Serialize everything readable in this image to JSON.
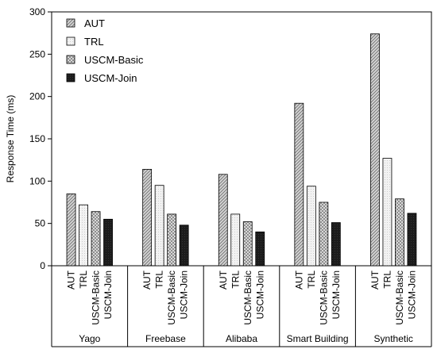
{
  "chart_data": {
    "type": "bar",
    "ylabel": "Response Time (ms)",
    "ylim": [
      0,
      300
    ],
    "yticks": [
      0,
      50,
      100,
      150,
      200,
      250,
      300
    ],
    "grid": false,
    "legend_position": "top-left",
    "categories": [
      "Yago",
      "Freebase",
      "Alibaba",
      "Smart Building",
      "Synthetic"
    ],
    "series": [
      {
        "name": "AUT",
        "pattern": "diagonal-hatch",
        "color": "#cfcfcf",
        "values": [
          85,
          114,
          108,
          192,
          274
        ]
      },
      {
        "name": "TRL",
        "pattern": "light",
        "color": "#f0f0f0",
        "values": [
          72,
          95,
          61,
          94,
          127
        ]
      },
      {
        "name": "USCM-Basic",
        "pattern": "cross-hatch",
        "color": "#d8d8d8",
        "values": [
          64,
          61,
          52,
          75,
          79
        ]
      },
      {
        "name": "USCM-Join",
        "pattern": "dark",
        "color": "#1a1a1a",
        "values": [
          55,
          48,
          40,
          51,
          62
        ]
      }
    ]
  }
}
